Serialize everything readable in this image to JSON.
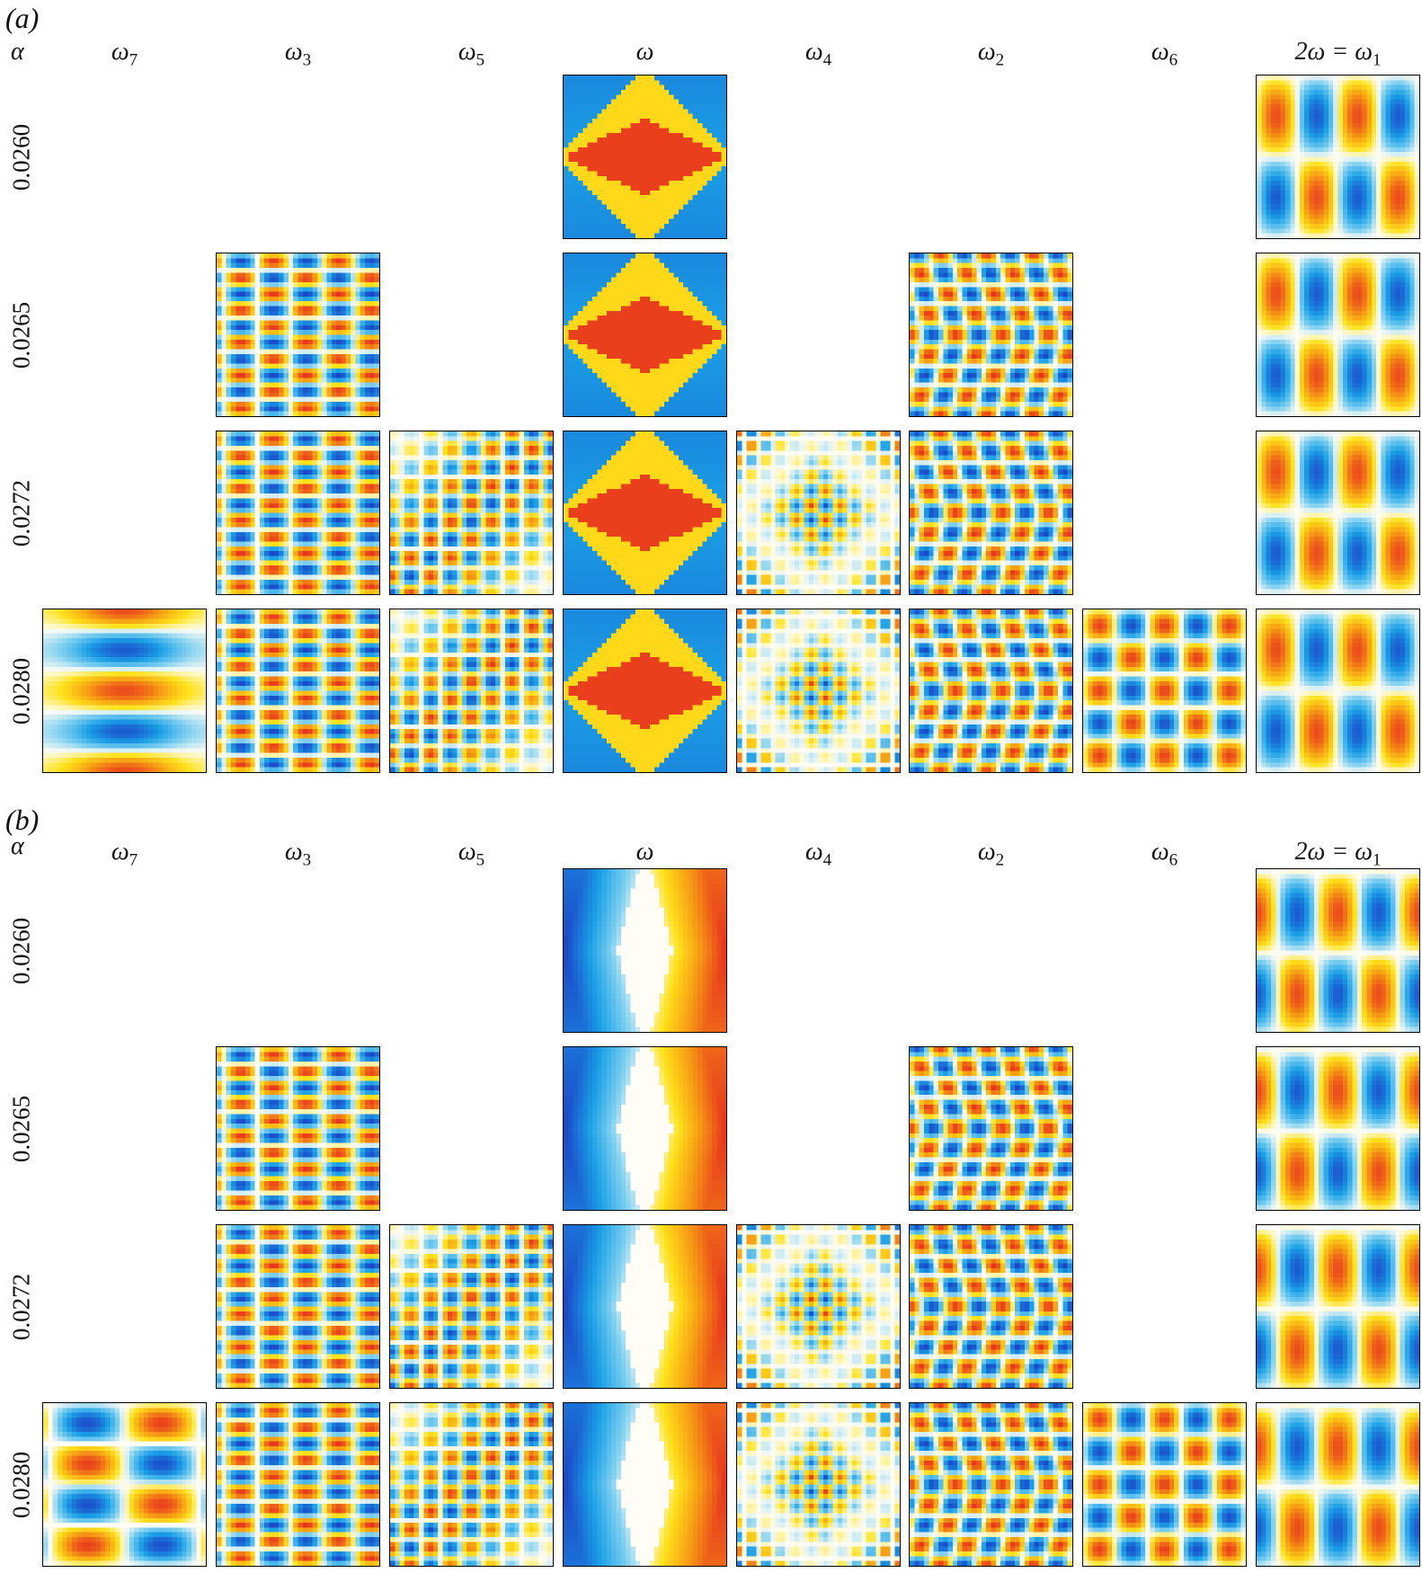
{
  "panels": [
    {
      "label": "(a)",
      "alpha_symbol": "α",
      "columns": [
        {
          "base": "ω",
          "sub": "7"
        },
        {
          "base": "ω",
          "sub": "3"
        },
        {
          "base": "ω",
          "sub": "5"
        },
        {
          "base": "ω",
          "sub": ""
        },
        {
          "base": "ω",
          "sub": "4"
        },
        {
          "base": "ω",
          "sub": "2"
        },
        {
          "base": "ω",
          "sub": "6"
        },
        {
          "base": "2ω = ω",
          "sub": "1"
        }
      ],
      "rows": [
        "0.0260",
        "0.0265",
        "0.0272",
        "0.0280"
      ],
      "present": [
        [
          false,
          false,
          false,
          true,
          false,
          false,
          false,
          true
        ],
        [
          false,
          true,
          false,
          true,
          false,
          true,
          false,
          true
        ],
        [
          false,
          true,
          true,
          true,
          true,
          true,
          false,
          true
        ],
        [
          true,
          true,
          true,
          true,
          true,
          true,
          true,
          true
        ]
      ]
    },
    {
      "label": "(b)",
      "alpha_symbol": "α",
      "columns": [
        {
          "base": "ω",
          "sub": "7"
        },
        {
          "base": "ω",
          "sub": "3"
        },
        {
          "base": "ω",
          "sub": "5"
        },
        {
          "base": "ω",
          "sub": ""
        },
        {
          "base": "ω",
          "sub": "4"
        },
        {
          "base": "ω",
          "sub": "2"
        },
        {
          "base": "ω",
          "sub": "6"
        },
        {
          "base": "2ω = ω",
          "sub": "1"
        }
      ],
      "rows": [
        "0.0260",
        "0.0265",
        "0.0272",
        "0.0280"
      ],
      "present": [
        [
          false,
          false,
          false,
          true,
          false,
          false,
          false,
          true
        ],
        [
          false,
          true,
          false,
          true,
          false,
          true,
          false,
          true
        ],
        [
          false,
          true,
          true,
          true,
          true,
          true,
          false,
          true
        ],
        [
          true,
          true,
          true,
          true,
          true,
          true,
          true,
          true
        ]
      ]
    }
  ],
  "colors": {
    "red": "#e8321e",
    "orange": "#f59a14",
    "yellow": "#ffe21a",
    "white": "#fffdf5",
    "light_blue": "#7fd0f0",
    "blue": "#1aa0e6",
    "dark_blue": "#1c44c8"
  }
}
